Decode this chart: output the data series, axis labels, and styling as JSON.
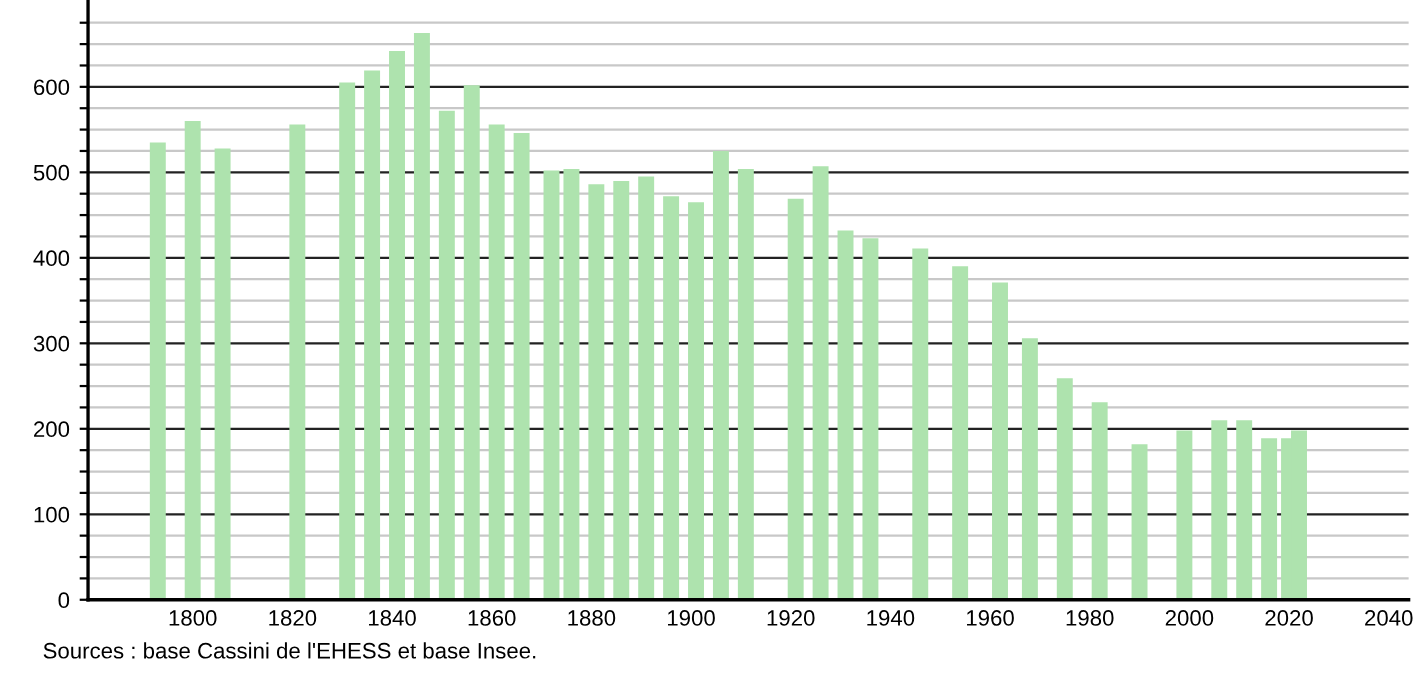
{
  "chart_data": {
    "type": "bar",
    "x": [
      1793,
      1800,
      1806,
      1821,
      1831,
      1836,
      1841,
      1846,
      1851,
      1856,
      1861,
      1866,
      1872,
      1876,
      1881,
      1886,
      1891,
      1896,
      1901,
      1906,
      1911,
      1921,
      1926,
      1931,
      1936,
      1946,
      1954,
      1962,
      1968,
      1975,
      1982,
      1990,
      1999,
      2006,
      2011,
      2016,
      2020,
      2022
    ],
    "values": [
      535,
      560,
      528,
      556,
      605,
      619,
      642,
      663,
      572,
      602,
      556,
      546,
      502,
      504,
      486,
      490,
      495,
      472,
      465,
      525,
      504,
      469,
      507,
      432,
      423,
      411,
      390,
      371,
      306,
      259,
      231,
      182,
      198,
      210,
      210,
      189,
      189,
      198
    ],
    "color": "#aee3ae",
    "xlim": [
      1779,
      2044
    ],
    "xticks": [
      1800,
      1820,
      1840,
      1860,
      1880,
      1900,
      1920,
      1940,
      1960,
      1980,
      2000,
      2020,
      2040
    ],
    "ylim": [
      0,
      700
    ],
    "yticks": [
      0,
      {
        "value": 25,
        "label": null
      },
      {
        "value": 50,
        "label": null
      },
      {
        "value": 75,
        "label": null
      },
      100,
      {
        "value": 125,
        "label": null
      },
      {
        "value": 150,
        "label": null
      },
      {
        "value": 175,
        "label": null
      },
      200,
      {
        "value": 225,
        "label": null
      },
      {
        "value": 250,
        "label": null
      },
      {
        "value": 275,
        "label": null
      },
      300,
      {
        "value": 325,
        "label": null
      },
      {
        "value": 350,
        "label": null
      },
      {
        "value": 375,
        "label": null
      },
      400,
      {
        "value": 425,
        "label": null
      },
      {
        "value": 450,
        "label": null
      },
      {
        "value": 475,
        "label": null
      },
      500,
      {
        "value": 525,
        "label": null
      },
      {
        "value": 550,
        "label": null
      },
      {
        "value": 575,
        "label": null
      },
      600,
      {
        "value": 625,
        "label": null
      },
      {
        "value": 650,
        "label": null
      },
      {
        "value": 675,
        "label": null
      }
    ],
    "grid": true,
    "annotations": [
      "Sources : base Cassini de l'EHESS et base Insee."
    ]
  }
}
